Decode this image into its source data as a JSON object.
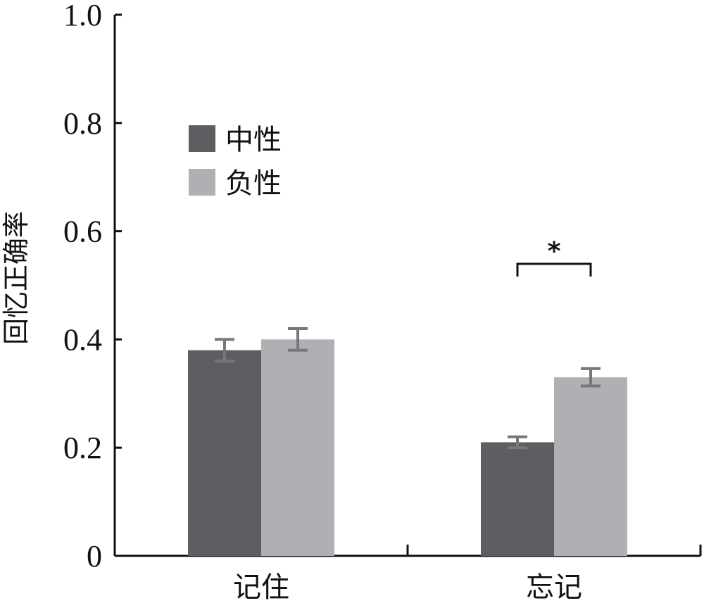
{
  "chart_data": {
    "type": "bar",
    "title": "",
    "xlabel": "",
    "ylabel": "回忆正确率",
    "categories": [
      "记住",
      "忘记"
    ],
    "series": [
      {
        "name": "中性",
        "values": [
          0.38,
          0.21
        ],
        "errors": [
          0.02,
          0.01
        ],
        "color": "#5f5d61"
      },
      {
        "name": "负性",
        "values": [
          0.4,
          0.33
        ],
        "errors": [
          0.02,
          0.016
        ],
        "color": "#b0afb3"
      }
    ],
    "ylim": [
      0,
      1.0
    ],
    "yticks": [
      0,
      0.2,
      0.4,
      0.6,
      0.8,
      1.0
    ],
    "ytick_labels": [
      "0",
      "0.2",
      "0.4",
      "0.6",
      "0.8",
      "1.0"
    ],
    "grid": false,
    "legend_position": "top-left",
    "error_bar_color": "#77767a",
    "annotations": [
      {
        "text": "*",
        "category": "忘记",
        "between_series": [
          "中性",
          "负性"
        ]
      }
    ]
  }
}
